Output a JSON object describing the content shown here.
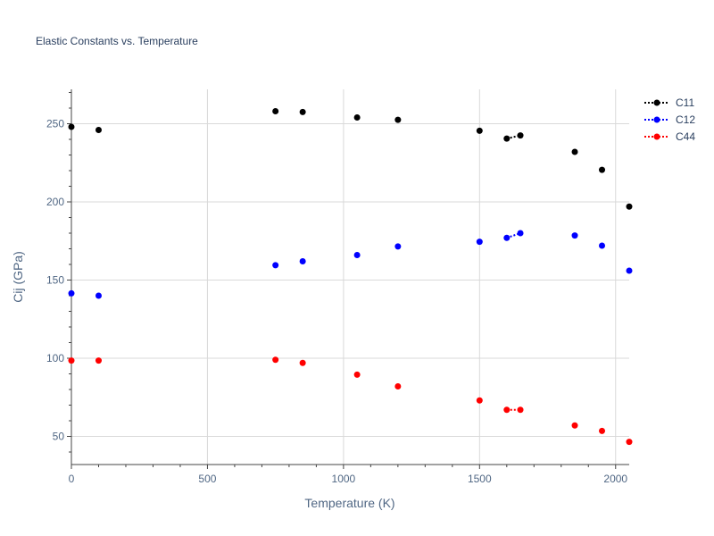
{
  "chart_data": {
    "type": "scatter",
    "title": "Elastic Constants vs. Temperature",
    "xlabel": "Temperature (K)",
    "ylabel": "Cij (GPa)",
    "xlim": [
      0,
      2050
    ],
    "ylim": [
      32,
      272
    ],
    "xticks": [
      0,
      500,
      1000,
      1500,
      2000
    ],
    "yticks": [
      50,
      100,
      150,
      200,
      250
    ],
    "legend_position": "top-right",
    "series": [
      {
        "name": "C11",
        "color": "#000000",
        "x": [
          0,
          100,
          750,
          850,
          1050,
          1200,
          1500,
          1600,
          1650,
          1850,
          1950,
          2050
        ],
        "y": [
          248,
          246,
          258,
          257.5,
          254,
          252.5,
          245.5,
          240.5,
          242.5,
          232,
          220.5,
          197
        ]
      },
      {
        "name": "C12",
        "color": "#0000ff",
        "x": [
          0,
          100,
          750,
          850,
          1050,
          1200,
          1500,
          1600,
          1650,
          1850,
          1950,
          2050
        ],
        "y": [
          141.5,
          140,
          159.5,
          162,
          166,
          171.5,
          174.5,
          177,
          180,
          178.5,
          172,
          156
        ]
      },
      {
        "name": "C44",
        "color": "#ff0000",
        "x": [
          0,
          100,
          750,
          850,
          1050,
          1200,
          1500,
          1600,
          1650,
          1850,
          1950,
          2050
        ],
        "y": [
          98.5,
          98.5,
          99,
          97,
          89.5,
          82,
          73,
          67,
          67,
          57,
          53.5,
          46.5
        ]
      }
    ]
  }
}
